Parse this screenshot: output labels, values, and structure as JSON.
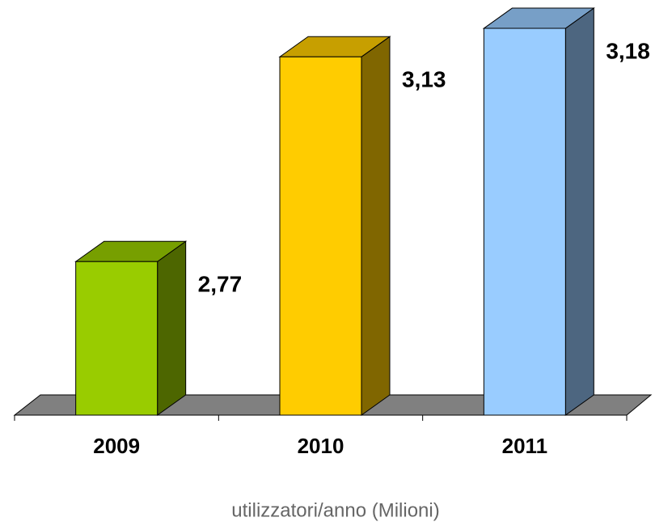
{
  "chart_data": {
    "type": "bar3d",
    "x_label": "utilizzatori/anno (Milioni)",
    "categories": [
      "2009",
      "2010",
      "2011"
    ],
    "values": [
      2.77,
      3.13,
      3.18
    ],
    "value_labels": [
      "2,77",
      "3,13",
      "3,18"
    ],
    "colors": [
      "#99cc00",
      "#ffcc00",
      "#99ccff"
    ],
    "ylim": [
      2.5,
      3.2
    ]
  }
}
